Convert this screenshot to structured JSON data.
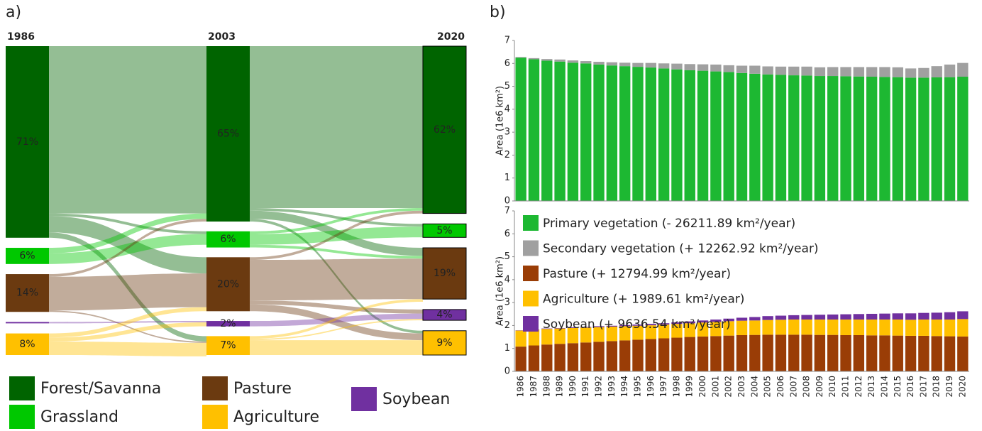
{
  "panel_labels": [
    "a)",
    "b)"
  ],
  "sankey": {
    "legend": [
      {
        "name": "Forest/Savanna",
        "color": "#006400"
      },
      {
        "name": "Grassland",
        "color": "#00c800"
      },
      {
        "name": "Pasture",
        "color": "#6b3a10"
      },
      {
        "name": "Agriculture",
        "color": "#ffc000"
      },
      {
        "name": "Soybean",
        "color": "#7030a0"
      }
    ],
    "columns": [
      {
        "year": "1986",
        "nodes": [
          {
            "class": 0,
            "value": 71,
            "label": "71%"
          },
          {
            "class": 1,
            "value": 6,
            "label": "6%"
          },
          {
            "class": 2,
            "value": 14,
            "label": "14%"
          },
          {
            "class": 4,
            "value": 0.5,
            "label": null
          },
          {
            "class": 3,
            "value": 8,
            "label": "8%"
          }
        ]
      },
      {
        "year": "2003",
        "nodes": [
          {
            "class": 0,
            "value": 65,
            "label": "65%"
          },
          {
            "class": 1,
            "value": 6,
            "label": "6%"
          },
          {
            "class": 2,
            "value": 20,
            "label": "20%"
          },
          {
            "class": 4,
            "value": 2,
            "label": "2%"
          },
          {
            "class": 3,
            "value": 7,
            "label": "7%"
          }
        ]
      },
      {
        "year": "2020",
        "nodes": [
          {
            "class": 0,
            "value": 62,
            "label": "62%"
          },
          {
            "class": 1,
            "value": 5,
            "label": "5%"
          },
          {
            "class": 2,
            "value": 19,
            "label": "19%"
          },
          {
            "class": 4,
            "value": 4,
            "label": "4%"
          },
          {
            "class": 3,
            "value": 9,
            "label": "9%"
          }
        ]
      }
    ],
    "flows": [
      [
        {
          "from": 0,
          "to": 0,
          "value": 62
        },
        {
          "from": 0,
          "to": 1,
          "value": 1
        },
        {
          "from": 0,
          "to": 2,
          "value": 6
        },
        {
          "from": 0,
          "to": 4,
          "value": 2
        },
        {
          "from": 1,
          "to": 0,
          "value": 2
        },
        {
          "from": 1,
          "to": 1,
          "value": 4
        },
        {
          "from": 2,
          "to": 0,
          "value": 1
        },
        {
          "from": 2,
          "to": 2,
          "value": 12.5
        },
        {
          "from": 2,
          "to": 4,
          "value": 0.5
        },
        {
          "from": 3,
          "to": 3,
          "value": 0.5
        },
        {
          "from": 4,
          "to": 2,
          "value": 1.5
        },
        {
          "from": 4,
          "to": 3,
          "value": 1.5
        },
        {
          "from": 4,
          "to": 4,
          "value": 5
        }
      ],
      [
        {
          "from": 0,
          "to": 0,
          "value": 60
        },
        {
          "from": 0,
          "to": 1,
          "value": 1
        },
        {
          "from": 0,
          "to": 2,
          "value": 3
        },
        {
          "from": 0,
          "to": 4,
          "value": 1
        },
        {
          "from": 1,
          "to": 0,
          "value": 1
        },
        {
          "from": 1,
          "to": 1,
          "value": 4
        },
        {
          "from": 1,
          "to": 2,
          "value": 1
        },
        {
          "from": 2,
          "to": 0,
          "value": 1
        },
        {
          "from": 2,
          "to": 2,
          "value": 15
        },
        {
          "from": 2,
          "to": 3,
          "value": 1.5
        },
        {
          "from": 2,
          "to": 4,
          "value": 2.5
        },
        {
          "from": 3,
          "to": 3,
          "value": 2
        },
        {
          "from": 4,
          "to": 2,
          "value": 1
        },
        {
          "from": 4,
          "to": 3,
          "value": 0.5
        },
        {
          "from": 4,
          "to": 4,
          "value": 5.5
        }
      ]
    ]
  },
  "chart_data": [
    {
      "type": "bar",
      "stacked": true,
      "y_label": "Area (1e6 km²)",
      "ylim": [
        0,
        7
      ],
      "yticks": [
        0,
        1,
        2,
        3,
        4,
        5,
        6,
        7
      ],
      "series": [
        {
          "name": "Primary vegetation (- 26211.89 km²/year)",
          "color": "#1db832",
          "values": [
            6.25,
            6.18,
            6.12,
            6.08,
            6.03,
            6.0,
            5.95,
            5.91,
            5.88,
            5.85,
            5.82,
            5.78,
            5.74,
            5.7,
            5.68,
            5.65,
            5.62,
            5.58,
            5.55,
            5.52,
            5.5,
            5.48,
            5.47,
            5.45,
            5.45,
            5.44,
            5.43,
            5.42,
            5.41,
            5.4,
            5.38,
            5.38,
            5.39,
            5.4,
            5.42
          ]
        },
        {
          "name": "Secondary vegetation (+ 12262.92 km²/year)",
          "color": "#a0a0a0",
          "values": [
            0.03,
            0.05,
            0.07,
            0.09,
            0.1,
            0.1,
            0.12,
            0.14,
            0.15,
            0.17,
            0.2,
            0.22,
            0.25,
            0.27,
            0.28,
            0.3,
            0.3,
            0.32,
            0.35,
            0.35,
            0.36,
            0.38,
            0.39,
            0.38,
            0.39,
            0.4,
            0.41,
            0.42,
            0.43,
            0.43,
            0.4,
            0.42,
            0.49,
            0.55,
            0.6
          ]
        }
      ]
    },
    {
      "type": "bar",
      "stacked": true,
      "y_label": "Area (1e6 km²)",
      "ylim": [
        0,
        7
      ],
      "yticks": [
        0,
        1,
        2,
        3,
        4,
        5,
        6,
        7
      ],
      "categories": [
        "1986",
        "1987",
        "1988",
        "1989",
        "1990",
        "1991",
        "1992",
        "1993",
        "1994",
        "1995",
        "1996",
        "1997",
        "1998",
        "1999",
        "2000",
        "2001",
        "2002",
        "2003",
        "2004",
        "2005",
        "2006",
        "2007",
        "2008",
        "2009",
        "2010",
        "2011",
        "2012",
        "2013",
        "2014",
        "2015",
        "2016",
        "2017",
        "2018",
        "2019",
        "2020"
      ],
      "series": [
        {
          "name": "Pasture (+ 12794.99 km²/year)",
          "color": "#9a3d06",
          "values": [
            1.08,
            1.13,
            1.17,
            1.2,
            1.23,
            1.26,
            1.29,
            1.32,
            1.35,
            1.38,
            1.41,
            1.44,
            1.47,
            1.5,
            1.52,
            1.54,
            1.56,
            1.58,
            1.59,
            1.6,
            1.6,
            1.6,
            1.6,
            1.59,
            1.59,
            1.58,
            1.58,
            1.57,
            1.57,
            1.56,
            1.55,
            1.55,
            1.54,
            1.53,
            1.52
          ]
        },
        {
          "name": "Agriculture (+ 1989.61 km²/year)",
          "color": "#ffc000",
          "values": [
            0.7,
            0.69,
            0.68,
            0.67,
            0.66,
            0.65,
            0.64,
            0.63,
            0.62,
            0.61,
            0.6,
            0.6,
            0.6,
            0.6,
            0.61,
            0.62,
            0.63,
            0.63,
            0.63,
            0.64,
            0.65,
            0.66,
            0.66,
            0.67,
            0.67,
            0.68,
            0.68,
            0.69,
            0.69,
            0.7,
            0.7,
            0.71,
            0.72,
            0.73,
            0.76
          ]
        },
        {
          "name": "Soybean (+ 9636.54 km²/year)",
          "color": "#7030a0",
          "values": [
            0.01,
            0.01,
            0.02,
            0.02,
            0.03,
            0.03,
            0.04,
            0.04,
            0.05,
            0.05,
            0.06,
            0.06,
            0.07,
            0.08,
            0.09,
            0.1,
            0.11,
            0.13,
            0.15,
            0.17,
            0.18,
            0.19,
            0.2,
            0.21,
            0.22,
            0.23,
            0.24,
            0.25,
            0.26,
            0.27,
            0.28,
            0.29,
            0.3,
            0.32,
            0.34
          ]
        }
      ]
    }
  ]
}
